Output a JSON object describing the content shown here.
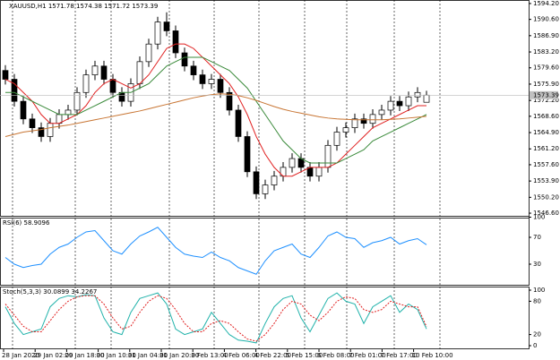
{
  "chart_data": [
    {
      "type": "candlestick",
      "title": "XAUUSD,H1 1571.78 1574.38 1571.72 1573.39",
      "open": [
        1579,
        1577,
        1572,
        1568,
        1566,
        1564,
        1567,
        1569,
        1570,
        1574,
        1578,
        1580,
        1577,
        1574,
        1572,
        1576,
        1581,
        1585,
        1590,
        1588,
        1583,
        1580,
        1578,
        1576,
        1577,
        1574,
        1570,
        1564,
        1556,
        1551,
        1553,
        1555,
        1557,
        1559,
        1557,
        1555,
        1557,
        1562,
        1565,
        1566,
        1568,
        1567,
        1569,
        1570,
        1572,
        1571,
        1573,
        1571.78
      ],
      "high": [
        1580.2,
        1578.2,
        1573.2,
        1569.2,
        1567.2,
        1568.2,
        1570.2,
        1571.2,
        1575.2,
        1579.2,
        1581.2,
        1581.2,
        1578.2,
        1575.2,
        1577.2,
        1582.2,
        1586.2,
        1591.2,
        1592.2,
        1589.2,
        1584.2,
        1581.2,
        1579.2,
        1578.2,
        1578.2,
        1575.2,
        1571.2,
        1565.2,
        1557.2,
        1554.2,
        1556.2,
        1558.2,
        1560.2,
        1560.2,
        1558.2,
        1558.2,
        1563.2,
        1566.2,
        1567.2,
        1569.2,
        1569.2,
        1570.2,
        1571.2,
        1573.2,
        1573.2,
        1574.2,
        1575.2,
        1574.38
      ],
      "low": [
        1575.8,
        1570.8,
        1566.8,
        1564.8,
        1562.8,
        1562.8,
        1565.8,
        1567.8,
        1568.8,
        1572.8,
        1576.8,
        1575.8,
        1572.8,
        1570.8,
        1570.8,
        1574.8,
        1579.8,
        1583.8,
        1586.8,
        1581.8,
        1578.8,
        1576.8,
        1574.8,
        1574.8,
        1572.8,
        1568.8,
        1562.8,
        1554.8,
        1549.8,
        1549.8,
        1551.8,
        1553.8,
        1555.8,
        1555.8,
        1553.8,
        1553.8,
        1555.8,
        1560.8,
        1563.8,
        1564.8,
        1565.8,
        1565.8,
        1567.8,
        1568.8,
        1569.8,
        1569.8,
        1571.8,
        1571.72
      ],
      "close": [
        1577,
        1572,
        1568,
        1566,
        1564,
        1567,
        1569,
        1570,
        1574,
        1578,
        1580,
        1577,
        1574,
        1572,
        1576,
        1581,
        1585,
        1590,
        1588,
        1583,
        1580,
        1578,
        1576,
        1577,
        1574,
        1570,
        1564,
        1556,
        1551,
        1553,
        1555,
        1557,
        1559,
        1557,
        1555,
        1557,
        1562,
        1565,
        1566,
        1568,
        1567,
        1569,
        1570,
        1572,
        1571,
        1573,
        1574,
        1573.39
      ],
      "series": [
        {
          "color": "#e02020",
          "values": [
            1577,
            1576,
            1574,
            1572,
            1569,
            1567,
            1567,
            1568,
            1569,
            1571,
            1574,
            1576,
            1577,
            1576,
            1575,
            1576,
            1578,
            1581,
            1584,
            1585,
            1585,
            1584,
            1582,
            1580,
            1578,
            1576,
            1573,
            1569,
            1564,
            1560,
            1557,
            1555,
            1555,
            1556,
            1557,
            1557,
            1557,
            1558,
            1560,
            1562,
            1564,
            1566,
            1567,
            1568,
            1569,
            1570,
            1571,
            1571
          ]
        },
        {
          "color": "#3a8a3a",
          "values": [
            1574,
            1574,
            1573,
            1572,
            1571,
            1570,
            1569,
            1569,
            1569,
            1570,
            1571,
            1572,
            1573,
            1574,
            1574,
            1575,
            1576,
            1578,
            1580,
            1581,
            1582,
            1582,
            1582,
            1581,
            1580,
            1579,
            1577,
            1575,
            1572,
            1569,
            1566,
            1563,
            1561,
            1559,
            1558,
            1558,
            1558,
            1558,
            1559,
            1560,
            1561,
            1563,
            1564,
            1565,
            1566,
            1567,
            1568,
            1569
          ]
        },
        {
          "color": "#c87533",
          "values": [
            1564,
            1564.5,
            1565,
            1565.3,
            1565.6,
            1566,
            1566.3,
            1566.6,
            1567,
            1567.4,
            1567.8,
            1568.2,
            1568.6,
            1569,
            1569.4,
            1569.8,
            1570.3,
            1570.8,
            1571.3,
            1571.8,
            1572.3,
            1572.8,
            1573.2,
            1573.5,
            1573.7,
            1573.6,
            1573.3,
            1572.8,
            1572.2,
            1571.5,
            1570.8,
            1570.2,
            1569.7,
            1569.3,
            1568.9,
            1568.5,
            1568.2,
            1568,
            1567.9,
            1567.8,
            1567.8,
            1567.8,
            1567.8,
            1567.9,
            1568,
            1568.2,
            1568.4,
            1568.6
          ]
        }
      ],
      "last_price_label": "1573.39",
      "ylim": [
        1546.0,
        1595.0
      ],
      "yticks": [
        {
          "value": 1594.2,
          "label": "1594.20"
        },
        {
          "value": 1590.6,
          "label": "1590.60"
        },
        {
          "value": 1586.9,
          "label": "1586.90"
        },
        {
          "value": 1583.2,
          "label": "1583.20"
        },
        {
          "value": 1579.6,
          "label": "1579.60"
        },
        {
          "value": 1575.9,
          "label": "1575.90"
        },
        {
          "value": 1572.2,
          "label": "1572.20"
        },
        {
          "value": 1568.6,
          "label": "1568.60"
        },
        {
          "value": 1564.9,
          "label": "1564.90"
        },
        {
          "value": 1561.2,
          "label": "1561.20"
        },
        {
          "value": 1557.6,
          "label": "1557.60"
        },
        {
          "value": 1553.9,
          "label": "1553.90"
        },
        {
          "value": 1550.2,
          "label": "1550.20"
        },
        {
          "value": 1546.6,
          "label": "1546.60"
        }
      ]
    },
    {
      "type": "line",
      "title": "RSI(6) 58.9096",
      "series": [
        {
          "color": "#1e90ff",
          "values": [
            40,
            30,
            25,
            28,
            30,
            45,
            55,
            60,
            70,
            78,
            80,
            65,
            50,
            45,
            60,
            72,
            78,
            85,
            70,
            55,
            45,
            42,
            40,
            48,
            40,
            35,
            25,
            20,
            15,
            35,
            50,
            55,
            60,
            45,
            40,
            55,
            72,
            78,
            70,
            68,
            55,
            62,
            65,
            70,
            60,
            65,
            68,
            58.9096
          ]
        }
      ],
      "ylim": [
        0,
        100
      ],
      "yticks": [
        100,
        70,
        30
      ]
    },
    {
      "type": "line",
      "title": "Stoch(5,3,3) 30.0899 34.2267",
      "series": [
        {
          "color": "#20b2aa",
          "values": [
            70,
            40,
            20,
            25,
            30,
            70,
            85,
            90,
            88,
            92,
            90,
            50,
            25,
            20,
            60,
            85,
            90,
            95,
            75,
            30,
            20,
            25,
            30,
            60,
            40,
            20,
            10,
            8,
            5,
            40,
            70,
            85,
            90,
            50,
            25,
            55,
            85,
            95,
            80,
            75,
            40,
            70,
            80,
            90,
            60,
            75,
            65,
            30.0899
          ]
        },
        {
          "color": "#e02020",
          "dashed": true,
          "values": [
            75,
            55,
            35,
            25,
            25,
            45,
            65,
            80,
            88,
            90,
            90,
            75,
            50,
            30,
            35,
            60,
            80,
            90,
            85,
            65,
            40,
            25,
            25,
            40,
            45,
            40,
            25,
            12,
            8,
            20,
            40,
            65,
            80,
            75,
            55,
            45,
            60,
            80,
            88,
            85,
            65,
            60,
            65,
            80,
            75,
            70,
            70,
            34.2267
          ]
        }
      ],
      "ylim": [
        0,
        100
      ],
      "yticks": [
        100,
        80,
        20,
        0
      ],
      "xtick_labels": [
        "28 Jan 2020",
        "29 Jan 02:00",
        "29 Jan 18:00",
        "30 Jan 10:00",
        "31 Jan 04:00",
        "31 Jan 20:00",
        "3 Feb 13:00",
        "4 Feb 06:00",
        "4 Feb 22:00",
        "5 Feb 15:00",
        "6 Feb 08:00",
        "7 Feb 01:00",
        "7 Feb 17:00",
        "10 Feb 10:00"
      ]
    }
  ]
}
